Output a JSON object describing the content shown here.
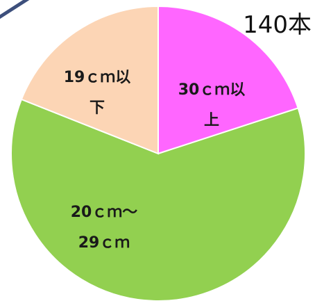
{
  "total_label": "140本",
  "colors": {
    "decoration_line": "#3d4f7c"
  },
  "chart_data": {
    "type": "pie",
    "slices": [
      {
        "label_lines": [
          "30ｃｍ以",
          "上"
        ],
        "value": 20,
        "color": "#ff66ff"
      },
      {
        "label_lines": [
          "20ｃｍ～",
          "29ｃｍ"
        ],
        "value": 61,
        "color": "#92d050"
      },
      {
        "label_lines": [
          "19ｃｍ以",
          "下"
        ],
        "value": 19,
        "color": "#fcd5b5"
      }
    ]
  }
}
